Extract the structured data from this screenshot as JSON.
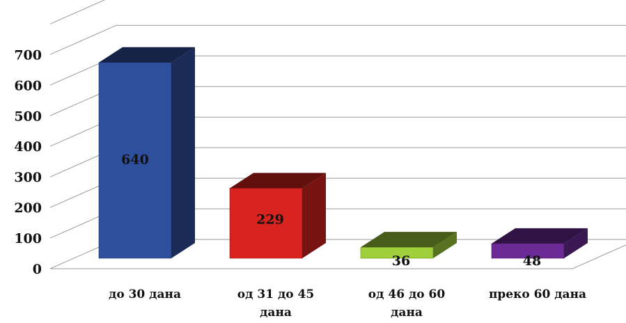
{
  "chart_data": {
    "type": "bar",
    "categories": [
      [
        "до 30 дана"
      ],
      [
        "од 31 до 45",
        "дана"
      ],
      [
        "од 46 до 60",
        "дана"
      ],
      [
        "преко 60 дана"
      ]
    ],
    "values": [
      640,
      229,
      36,
      48
    ],
    "data_labels": [
      "640",
      "229",
      "36",
      "48"
    ],
    "y_ticks": [
      "0",
      "100",
      "200",
      "300",
      "400",
      "500",
      "600",
      "700"
    ],
    "ylim": [
      0,
      800
    ],
    "grid": true,
    "style": "3d",
    "colors": [
      "#2e4f9c",
      "#d8231f",
      "#9fcf3a",
      "#6b2a96"
    ]
  }
}
